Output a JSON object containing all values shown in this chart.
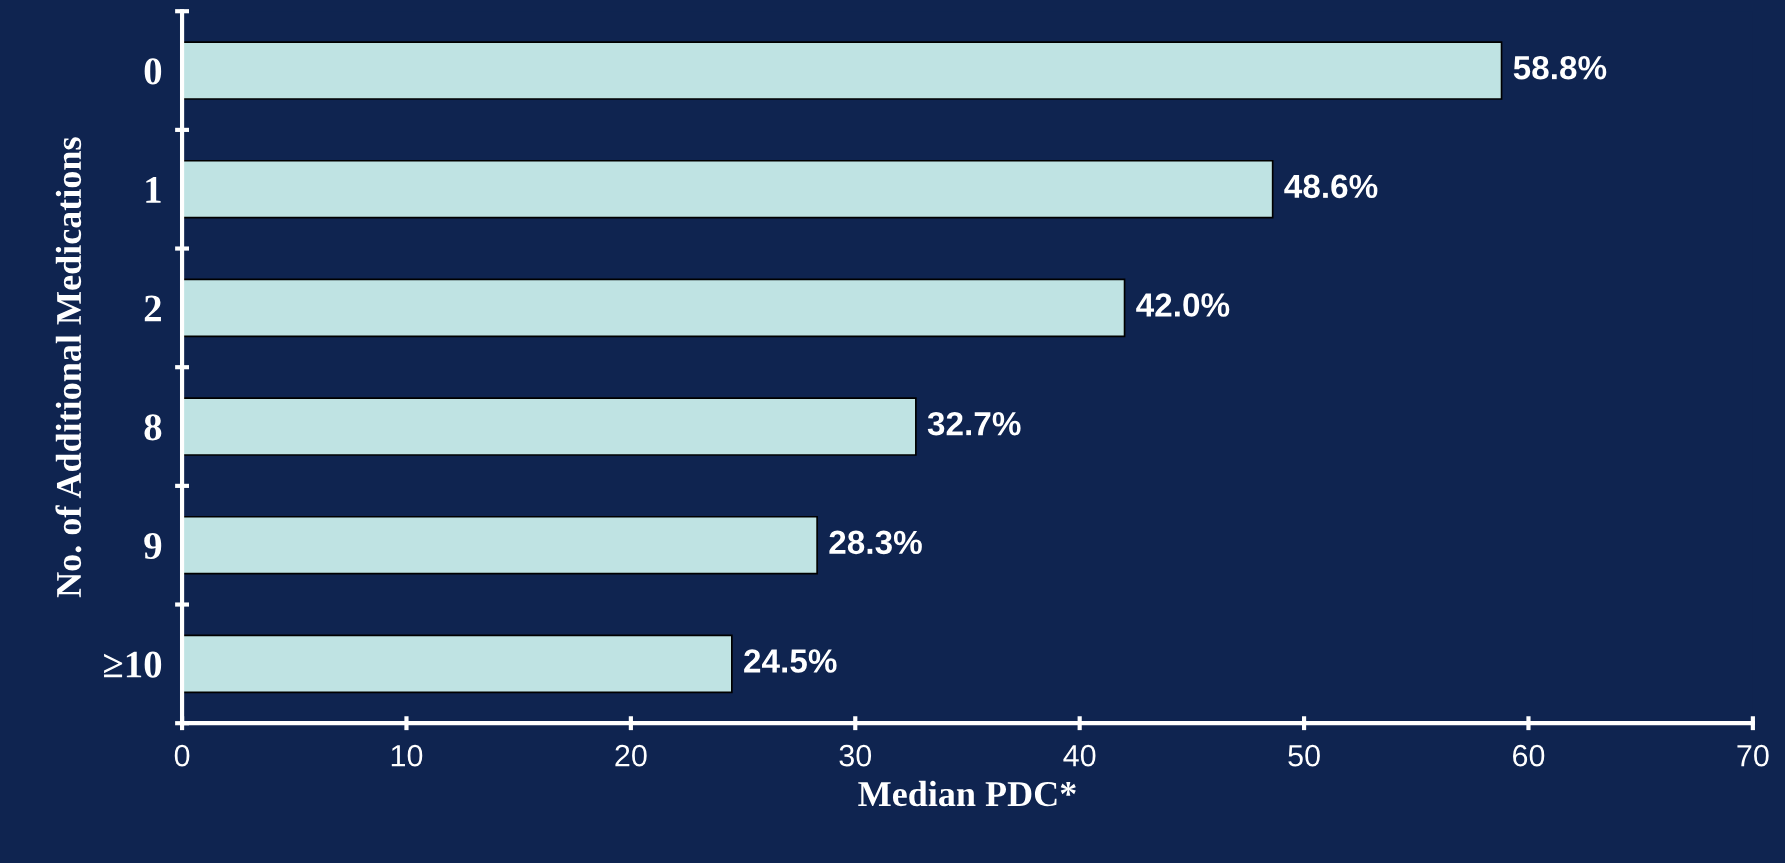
{
  "chart_data": {
    "type": "bar",
    "orientation": "horizontal",
    "categories": [
      "0",
      "1",
      "2",
      "8",
      "9",
      "≥10"
    ],
    "values": [
      58.8,
      48.6,
      42.0,
      32.7,
      28.3,
      24.5
    ],
    "value_labels": [
      "58.8%",
      "48.6%",
      "42.0%",
      "32.7%",
      "28.3%",
      "24.5%"
    ],
    "color": "#bfe3e3",
    "xlim": [
      0,
      70
    ],
    "xticks": [
      0,
      10,
      20,
      30,
      40,
      50,
      60,
      70
    ],
    "xlabel": "Median PDC*",
    "ylabel": "No. of Additional Medications",
    "grid": false,
    "legend": false
  }
}
